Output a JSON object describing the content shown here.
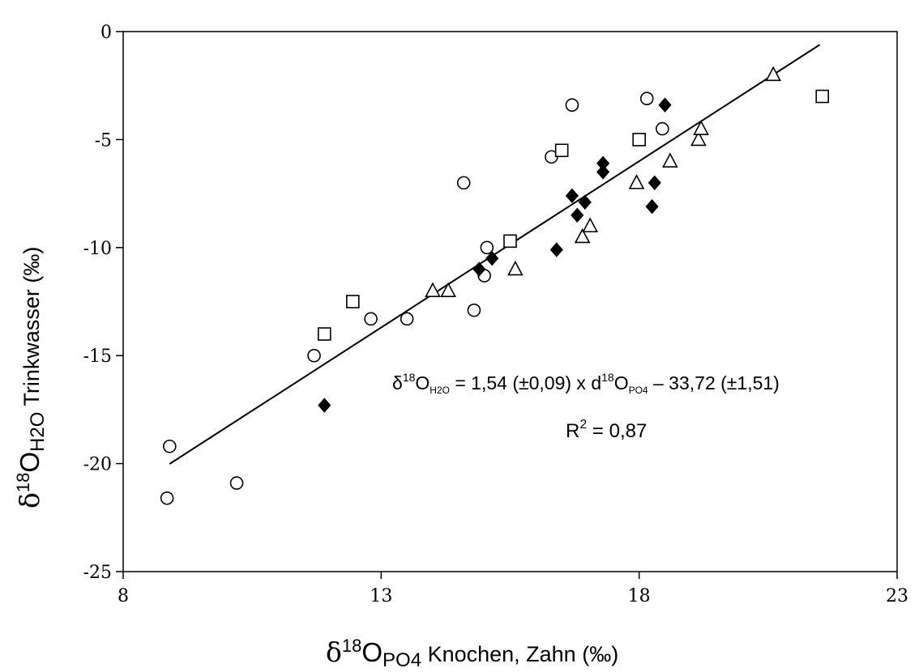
{
  "chart_data": {
    "type": "scatter",
    "xlabel": {
      "delta": "δ",
      "sup": "18",
      "main": "O",
      "sub": "PO4",
      "rest": " Knochen, Zahn (‰)"
    },
    "ylabel": {
      "delta": "δ",
      "sup": "18",
      "main": "O",
      "sub": "H2O",
      "rest": " Trinkwasser (‰)"
    },
    "xlim": [
      8,
      23
    ],
    "ylim": [
      -25,
      0
    ],
    "xticks": [
      8,
      13,
      18,
      23
    ],
    "yticks": [
      0,
      -5,
      -10,
      -15,
      -20,
      -25
    ],
    "grid": false,
    "legend": "none",
    "series": [
      {
        "marker": "circle-open",
        "points": [
          [
            8.9,
            -19.2
          ],
          [
            8.85,
            -21.6
          ],
          [
            10.2,
            -20.9
          ],
          [
            11.7,
            -15.0
          ],
          [
            12.8,
            -13.3
          ],
          [
            13.5,
            -13.3
          ],
          [
            14.6,
            -7.0
          ],
          [
            14.8,
            -12.9
          ],
          [
            15.0,
            -11.3
          ],
          [
            15.05,
            -10.0
          ],
          [
            16.3,
            -5.8
          ],
          [
            16.7,
            -3.4
          ],
          [
            18.15,
            -3.1
          ],
          [
            18.45,
            -4.5
          ]
        ]
      },
      {
        "marker": "square-open",
        "points": [
          [
            11.9,
            -14.0
          ],
          [
            12.45,
            -12.5
          ],
          [
            15.5,
            -9.7
          ],
          [
            16.5,
            -5.5
          ],
          [
            18.0,
            -5.0
          ],
          [
            21.55,
            -3.0
          ]
        ]
      },
      {
        "marker": "triangle-open",
        "points": [
          [
            14.0,
            -12.0
          ],
          [
            14.3,
            -12.0
          ],
          [
            15.6,
            -11.0
          ],
          [
            16.9,
            -9.5
          ],
          [
            17.05,
            -9.0
          ],
          [
            17.95,
            -7.0
          ],
          [
            18.6,
            -6.0
          ],
          [
            19.15,
            -5.0
          ],
          [
            19.2,
            -4.5
          ],
          [
            20.6,
            -2.0
          ]
        ]
      },
      {
        "marker": "diamond-filled",
        "points": [
          [
            11.9,
            -17.3
          ],
          [
            14.9,
            -11.0
          ],
          [
            15.15,
            -10.5
          ],
          [
            16.4,
            -10.1
          ],
          [
            16.7,
            -7.6
          ],
          [
            16.8,
            -8.5
          ],
          [
            16.95,
            -7.9
          ],
          [
            17.3,
            -6.1
          ],
          [
            17.3,
            -6.5
          ],
          [
            18.3,
            -7.0
          ],
          [
            18.25,
            -8.1
          ],
          [
            18.5,
            -3.4
          ]
        ]
      }
    ],
    "regression": {
      "slope": 1.54,
      "intercept": -33.72,
      "x_range": [
        8.9,
        21.5
      ]
    },
    "equation": {
      "lhs_delta": "δ",
      "lhs_sup": "18",
      "lhs_main": "O",
      "lhs_sub": "H2O",
      "mid": " = 1,54 (±0,09) x d",
      "rhs_sup": "18",
      "rhs_main": "O",
      "rhs_sub": "PO4",
      "tail": " – 33,72 (±1,51)"
    },
    "r2": {
      "label": "R",
      "sup": "2",
      "value": " = 0,87"
    }
  }
}
